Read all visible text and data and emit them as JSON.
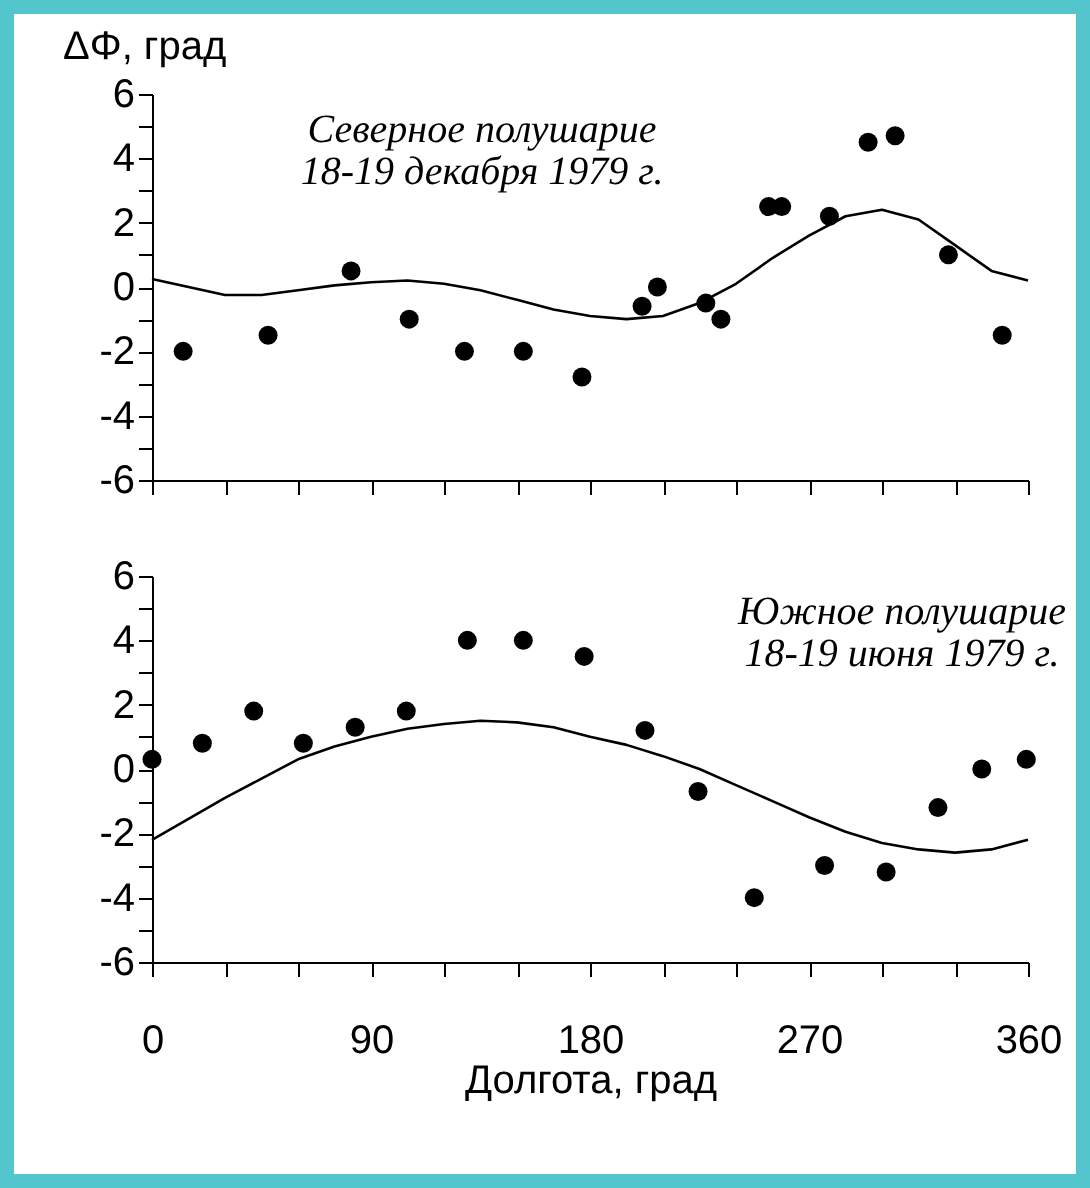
{
  "chart_data": [
    {
      "type": "scatter",
      "ylabel": "ΔΦ, град",
      "annotations": [
        "Северное полушарие\n18-19 декабря 1979 г."
      ],
      "xlim": [
        0,
        360
      ],
      "ylim": [
        -6,
        6
      ],
      "xticks": [
        0,
        {
          "value": 30,
          "label": null
        },
        {
          "value": 60,
          "label": null
        },
        90,
        {
          "value": 120,
          "label": null
        },
        {
          "value": 150,
          "label": null
        },
        180,
        {
          "value": 210,
          "label": null
        },
        {
          "value": 240,
          "label": null
        },
        270,
        {
          "value": 300,
          "label": null
        },
        {
          "value": 330,
          "label": null
        },
        360
      ],
      "yticks": [
        -6,
        {
          "value": -5,
          "label": null
        },
        -4,
        {
          "value": -3,
          "label": null
        },
        -2,
        {
          "value": -1,
          "label": null
        },
        0,
        {
          "value": 1,
          "label": null
        },
        2,
        {
          "value": 3,
          "label": null
        },
        4,
        {
          "value": 5,
          "label": null
        },
        6
      ],
      "tick_labels": "y",
      "grid": false,
      "series": [
        {
          "type": "scatter",
          "marker": "circle",
          "color": "#000000",
          "x": [
            12.8,
            47.7,
            81.8,
            105.7,
            128.4,
            152.6,
            176.7,
            201.4,
            207.7,
            227.6,
            233.8,
            253.4,
            258.8,
            278.4,
            294.3,
            305.4,
            327.3,
            349.4
          ],
          "values": [
            -2.0,
            -1.5,
            0.5,
            -1.0,
            -2.0,
            -2.0,
            -2.8,
            -0.6,
            0.0,
            -0.5,
            -1.0,
            2.5,
            2.5,
            2.2,
            4.5,
            4.7,
            1.0,
            -1.5
          ]
        },
        {
          "type": "line",
          "line_style": "solid",
          "marker": "none",
          "color": "#000000",
          "x": [
            0,
            15,
            30,
            45,
            60,
            75,
            90,
            105,
            120,
            135,
            150,
            165,
            180,
            195,
            210,
            225,
            240,
            255,
            270,
            285,
            300,
            315,
            330,
            345,
            360
          ],
          "values": [
            0.25,
            0.0,
            -0.25,
            -0.25,
            -0.1,
            0.05,
            0.15,
            0.2,
            0.1,
            -0.1,
            -0.4,
            -0.7,
            -0.9,
            -1.0,
            -0.9,
            -0.5,
            0.1,
            0.9,
            1.6,
            2.2,
            2.4,
            2.1,
            1.3,
            0.5,
            0.2
          ]
        }
      ]
    },
    {
      "type": "scatter",
      "xlabel": "Долгота, град",
      "annotations": [
        "Южное полушарие\n18-19 июня 1979 г."
      ],
      "xlim": [
        0,
        360
      ],
      "ylim": [
        -6,
        6
      ],
      "xticks": [
        0,
        {
          "value": 30,
          "label": null
        },
        {
          "value": 60,
          "label": null
        },
        90,
        {
          "value": 120,
          "label": null
        },
        {
          "value": 150,
          "label": null
        },
        180,
        {
          "value": 210,
          "label": null
        },
        {
          "value": 240,
          "label": null
        },
        270,
        {
          "value": 300,
          "label": null
        },
        {
          "value": 330,
          "label": null
        },
        360
      ],
      "yticks": [
        -6,
        {
          "value": -5,
          "label": null
        },
        -4,
        {
          "value": -3,
          "label": null
        },
        -2,
        {
          "value": -1,
          "label": null
        },
        0,
        {
          "value": 1,
          "label": null
        },
        2,
        {
          "value": 3,
          "label": null
        },
        4,
        {
          "value": 5,
          "label": null
        },
        6
      ],
      "grid": false,
      "series": [
        {
          "type": "scatter",
          "marker": "circle",
          "color": "#000000",
          "x": [
            0,
            20.7,
            41.8,
            62.2,
            83.5,
            104.5,
            129.6,
            152.6,
            177.6,
            202.6,
            224.4,
            247.5,
            276.4,
            301.7,
            323,
            341,
            359.3
          ],
          "values": [
            0.3,
            0.8,
            1.8,
            0.8,
            1.3,
            1.8,
            4.0,
            4.0,
            3.5,
            1.2,
            -0.7,
            -4.0,
            -3.0,
            -3.2,
            -1.2,
            0.0,
            0.3
          ]
        },
        {
          "type": "line",
          "line_style": "solid",
          "marker": "none",
          "color": "#000000",
          "x": [
            0,
            15,
            30,
            45,
            60,
            75,
            90,
            105,
            120,
            135,
            150,
            165,
            180,
            195,
            210,
            225,
            240,
            255,
            270,
            285,
            300,
            315,
            330,
            345,
            360
          ],
          "values": [
            -2.2,
            -1.55,
            -0.9,
            -0.3,
            0.3,
            0.7,
            1.0,
            1.25,
            1.4,
            1.5,
            1.45,
            1.3,
            1.0,
            0.75,
            0.4,
            0.0,
            -0.5,
            -1.0,
            -1.5,
            -1.95,
            -2.3,
            -2.5,
            -2.6,
            -2.5,
            -2.2
          ]
        }
      ]
    }
  ]
}
